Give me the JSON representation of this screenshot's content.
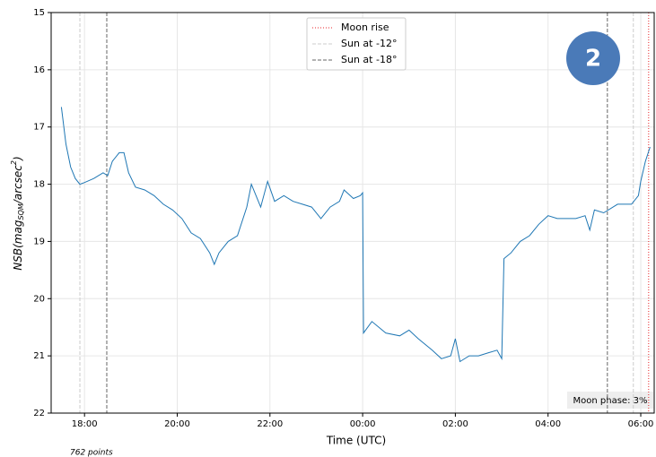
{
  "chart_data": {
    "type": "line",
    "xlabel": "Time (UTC)",
    "ylabel": {
      "base": "NSB",
      "open": "(mag",
      "sub": "SQM",
      "mid": "/arcsec",
      "sup": "2",
      "close": ")"
    },
    "x": [
      17.5,
      17.6,
      17.7,
      17.8,
      17.9,
      18.0,
      18.2,
      18.4,
      18.5,
      18.6,
      18.75,
      18.85,
      18.95,
      19.1,
      19.3,
      19.5,
      19.7,
      19.9,
      20.1,
      20.3,
      20.5,
      20.7,
      20.8,
      20.9,
      21.1,
      21.3,
      21.5,
      21.6,
      21.8,
      21.95,
      22.1,
      22.3,
      22.5,
      22.7,
      22.9,
      23.1,
      23.3,
      23.5,
      23.6,
      23.8,
      23.95,
      24.0,
      24.02,
      24.2,
      24.5,
      24.8,
      25.0,
      25.2,
      25.5,
      25.7,
      25.9,
      26.0,
      26.1,
      26.3,
      26.5,
      26.7,
      26.9,
      27.0,
      27.05,
      27.2,
      27.4,
      27.6,
      27.8,
      28.0,
      28.2,
      28.4,
      28.6,
      28.8,
      28.9,
      29.0,
      29.2,
      29.5,
      29.8,
      29.95,
      30.0,
      30.1,
      30.2
    ],
    "series": [
      {
        "name": "NSB",
        "color": "#1f77b4",
        "values": [
          16.65,
          17.3,
          17.7,
          17.9,
          18.0,
          17.97,
          17.9,
          17.8,
          17.85,
          17.6,
          17.45,
          17.45,
          17.8,
          18.05,
          18.1,
          18.2,
          18.35,
          18.45,
          18.6,
          18.85,
          18.95,
          19.2,
          19.4,
          19.2,
          19.0,
          18.9,
          18.4,
          18.0,
          18.4,
          17.95,
          18.3,
          18.2,
          18.3,
          18.35,
          18.4,
          18.6,
          18.4,
          18.3,
          18.1,
          18.25,
          18.2,
          18.15,
          20.6,
          20.4,
          20.6,
          20.65,
          20.55,
          20.7,
          20.9,
          21.05,
          21.0,
          20.7,
          21.1,
          21.0,
          21.0,
          20.95,
          20.9,
          21.05,
          19.3,
          19.2,
          19.0,
          18.9,
          18.7,
          18.55,
          18.6,
          18.6,
          18.6,
          18.55,
          18.8,
          18.45,
          18.5,
          18.35,
          18.35,
          18.2,
          17.95,
          17.6,
          17.35
        ]
      }
    ],
    "vlines": [
      {
        "name": "Moon rise",
        "color": "#e8262a",
        "dash": "1,2",
        "x": [
          30.17
        ]
      },
      {
        "name": "Sun at -12°",
        "color": "#cccccc",
        "dash": "4,2",
        "x": [
          17.9,
          29.84
        ]
      },
      {
        "name": "Sun at -18°",
        "color": "#666666",
        "dash": "4,2",
        "x": [
          18.48,
          29.28
        ]
      }
    ],
    "xlim": [
      17.28,
      30.29
    ],
    "xticks": [
      {
        "value": 18,
        "label": "18:00"
      },
      {
        "value": 20,
        "label": "20:00"
      },
      {
        "value": 22,
        "label": "22:00"
      },
      {
        "value": 24,
        "label": "00:00"
      },
      {
        "value": 26,
        "label": "02:00"
      },
      {
        "value": 28,
        "label": "04:00"
      },
      {
        "value": 30,
        "label": "06:00"
      }
    ],
    "ylim": [
      22,
      15
    ],
    "yticks": [
      15,
      16,
      17,
      18,
      19,
      20,
      21,
      22
    ],
    "grid": true,
    "legend": "top",
    "annotations": {
      "moon_phase": "Moon phase: 3%",
      "points": "762 points",
      "badge": "2"
    }
  }
}
